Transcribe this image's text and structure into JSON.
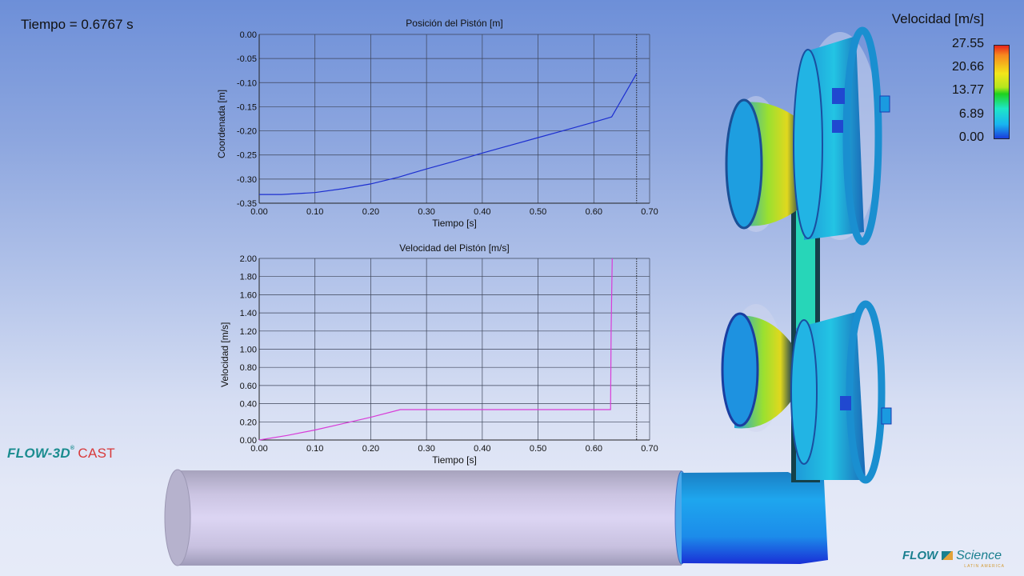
{
  "time_display": "Tiempo = 0.6767 s",
  "chart_data": [
    {
      "type": "line",
      "title": "Posición del Pistón [m]",
      "xlabel": "Tiempo [s]",
      "ylabel": "Coordenada [m]",
      "xlim": [
        0.0,
        0.7
      ],
      "ylim": [
        -0.35,
        0.0
      ],
      "xticks": [
        "0.00",
        "0.10",
        "0.20",
        "0.30",
        "0.40",
        "0.50",
        "0.60",
        "0.70"
      ],
      "yticks": [
        "0.00",
        "-0.05",
        "-0.10",
        "-0.15",
        "-0.20",
        "-0.25",
        "-0.30",
        "-0.35"
      ],
      "grid": true,
      "current_time_marker": 0.6767,
      "series": [
        {
          "name": "Posición",
          "color": "#1d2fd0",
          "x": [
            0.0,
            0.04,
            0.1,
            0.15,
            0.2,
            0.25,
            0.3,
            0.35,
            0.4,
            0.45,
            0.5,
            0.55,
            0.6,
            0.632,
            0.6767
          ],
          "y": [
            -0.332,
            -0.332,
            -0.328,
            -0.32,
            -0.31,
            -0.296,
            -0.279,
            -0.263,
            -0.246,
            -0.23,
            -0.214,
            -0.198,
            -0.182,
            -0.171,
            -0.081
          ]
        }
      ]
    },
    {
      "type": "line",
      "title": "Velocidad del Pistón [m/s]",
      "xlabel": "Tiempo [s]",
      "ylabel": "Velocidad [m/s]",
      "xlim": [
        0.0,
        0.7
      ],
      "ylim": [
        0.0,
        2.0
      ],
      "xticks": [
        "0.00",
        "0.10",
        "0.20",
        "0.30",
        "0.40",
        "0.50",
        "0.60",
        "0.70"
      ],
      "yticks": [
        "2.00",
        "1.80",
        "1.60",
        "1.40",
        "1.20",
        "1.00",
        "0.80",
        "0.60",
        "0.40",
        "0.20",
        "0.00"
      ],
      "grid": true,
      "current_time_marker": 0.6767,
      "series": [
        {
          "name": "Velocidad",
          "color": "#d83cd8",
          "x": [
            0.0,
            0.05,
            0.1,
            0.15,
            0.2,
            0.253,
            0.3,
            0.4,
            0.5,
            0.6,
            0.63,
            0.631,
            0.633
          ],
          "y": [
            0.0,
            0.05,
            0.11,
            0.18,
            0.25,
            0.335,
            0.335,
            0.335,
            0.335,
            0.335,
            0.335,
            1.2,
            2.0
          ]
        }
      ]
    }
  ],
  "legend": {
    "title": "Velocidad [m/s]",
    "values": [
      "27.55",
      "20.66",
      "13.77",
      "6.89",
      "0.00"
    ],
    "colormap": [
      "#e8231a",
      "#f7861e",
      "#f2e61a",
      "#b4e61e",
      "#1ed21e",
      "#1ee6c8",
      "#19b4f0",
      "#1a3cdc"
    ]
  },
  "logos": {
    "flow3d": "FLOW-3D",
    "flow3d_reg": "®",
    "cast": "CAST",
    "fs_flow": "FLOW",
    "fs_science": "Science",
    "fs_region": "LATIN AMERICA"
  },
  "colors": {
    "grid": "#3c4458",
    "marker": "#222222",
    "shot_sleeve": "#d4cdee",
    "metal_blue": "#1e8cf0",
    "metal_cyan": "#22d2e6"
  }
}
